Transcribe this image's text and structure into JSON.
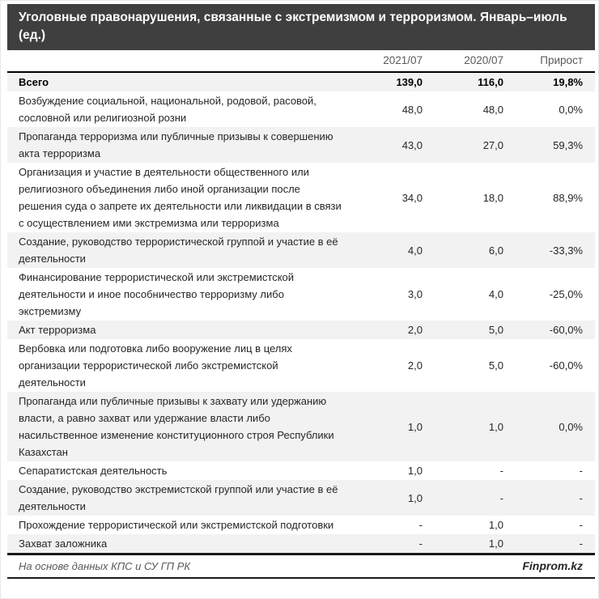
{
  "title": "Уголовные правонарушения, связанные с экстремизмом и терроризмом. Январь–июль (ед.)",
  "columns": {
    "name": "",
    "c2021": "2021/07",
    "c2020": "2020/07",
    "growth": "Прирост"
  },
  "rows": [
    {
      "label": "Всего",
      "v2021": "139,0",
      "v2020": "116,0",
      "growth": "19,8%",
      "bold": true
    },
    {
      "label": "Возбуждение социальной, национальной, родовой, расовой, сословной или религиозной розни",
      "v2021": "48,0",
      "v2020": "48,0",
      "growth": "0,0%",
      "bold": false
    },
    {
      "label": "Пропаганда терроризма или публичные призывы к совершению акта терроризма",
      "v2021": "43,0",
      "v2020": "27,0",
      "growth": "59,3%",
      "bold": false
    },
    {
      "label": "Организация и участие в деятельности общественного или религиозного объединения либо иной организации после решения суда о запрете их деятельности или ликвидации в связи с осуществлением ими экстремизма или терроризма",
      "v2021": "34,0",
      "v2020": "18,0",
      "growth": "88,9%",
      "bold": false
    },
    {
      "label": "Создание, руководство террористической группой и участие в её деятельности",
      "v2021": "4,0",
      "v2020": "6,0",
      "growth": "-33,3%",
      "bold": false
    },
    {
      "label": "Финансирование террористической или экстремистской деятельности и иное пособничество терроризму либо экстремизму",
      "v2021": "3,0",
      "v2020": "4,0",
      "growth": "-25,0%",
      "bold": false
    },
    {
      "label": "Акт терроризма",
      "v2021": "2,0",
      "v2020": "5,0",
      "growth": "-60,0%",
      "bold": false
    },
    {
      "label": "Вербовка или подготовка либо вооружение лиц в целях организации террористической либо экстремистской деятельности",
      "v2021": "2,0",
      "v2020": "5,0",
      "growth": "-60,0%",
      "bold": false
    },
    {
      "label": "Пропаганда или публичные призывы к захвату или удержанию власти, а равно захват или удержание власти либо насильственное изменение конституционного строя Республики Казахстан",
      "v2021": "1,0",
      "v2020": "1,0",
      "growth": "0,0%",
      "bold": false
    },
    {
      "label": "Сепаратистская деятельность",
      "v2021": "1,0",
      "v2020": "-",
      "growth": "-",
      "bold": false
    },
    {
      "label": "Создание, руководство экстремистской группой или участие в её деятельности",
      "v2021": "1,0",
      "v2020": "-",
      "growth": "-",
      "bold": false
    },
    {
      "label": "Прохождение террористической или экстремистской подготовки",
      "v2021": "-",
      "v2020": "1,0",
      "growth": "-",
      "bold": false
    },
    {
      "label": "Захват заложника",
      "v2021": "-",
      "v2020": "1,0",
      "growth": "-",
      "bold": false
    }
  ],
  "footer": {
    "source": "На основе данных КПС и СУ ГП РК",
    "brand": "Finprom.kz"
  },
  "colors": {
    "title_bg": "#3f3f3f",
    "title_text": "#ffffff",
    "stripe": "#f2f2f2",
    "header_text": "#595959",
    "body_text": "#262626",
    "rule": "#000000"
  },
  "chart_data": {
    "type": "table",
    "title": "Уголовные правонарушения, связанные с экстремизмом и терроризмом. Январь–июль (ед.)",
    "columns": [
      "2021/07",
      "2020/07",
      "Прирост"
    ],
    "rows": [
      [
        "Всего",
        139.0,
        116.0,
        "19,8%"
      ],
      [
        "Возбуждение социальной, национальной, родовой, расовой, сословной или религиозной розни",
        48.0,
        48.0,
        "0,0%"
      ],
      [
        "Пропаганда терроризма или публичные призывы к совершению акта терроризма",
        43.0,
        27.0,
        "59,3%"
      ],
      [
        "Организация и участие в деятельности общественного или религиозного объединения либо иной организации после решения суда о запрете их деятельности или ликвидации в связи с осуществлением ими экстремизма или терроризма",
        34.0,
        18.0,
        "88,9%"
      ],
      [
        "Создание, руководство террористической группой и участие в её деятельности",
        4.0,
        6.0,
        "-33,3%"
      ],
      [
        "Финансирование террористической или экстремистской деятельности и иное пособничество терроризму либо экстремизму",
        3.0,
        4.0,
        "-25,0%"
      ],
      [
        "Акт терроризма",
        2.0,
        5.0,
        "-60,0%"
      ],
      [
        "Вербовка или подготовка либо вооружение лиц в целях организации террористической либо экстремистской деятельности",
        2.0,
        5.0,
        "-60,0%"
      ],
      [
        "Пропаганда или публичные призывы к захвату или удержанию власти, а равно захват или удержание власти либо насильственное изменение конституционного строя Республики Казахстан",
        1.0,
        1.0,
        "0,0%"
      ],
      [
        "Сепаратистская деятельность",
        1.0,
        null,
        null
      ],
      [
        "Создание, руководство экстремистской группой или участие в её деятельности",
        1.0,
        null,
        null
      ],
      [
        "Прохождение террористической или экстремистской подготовки",
        null,
        1.0,
        null
      ],
      [
        "Захват заложника",
        null,
        1.0,
        null
      ]
    ],
    "source": "На основе данных КПС и СУ ГП РК",
    "brand": "Finprom.kz"
  }
}
